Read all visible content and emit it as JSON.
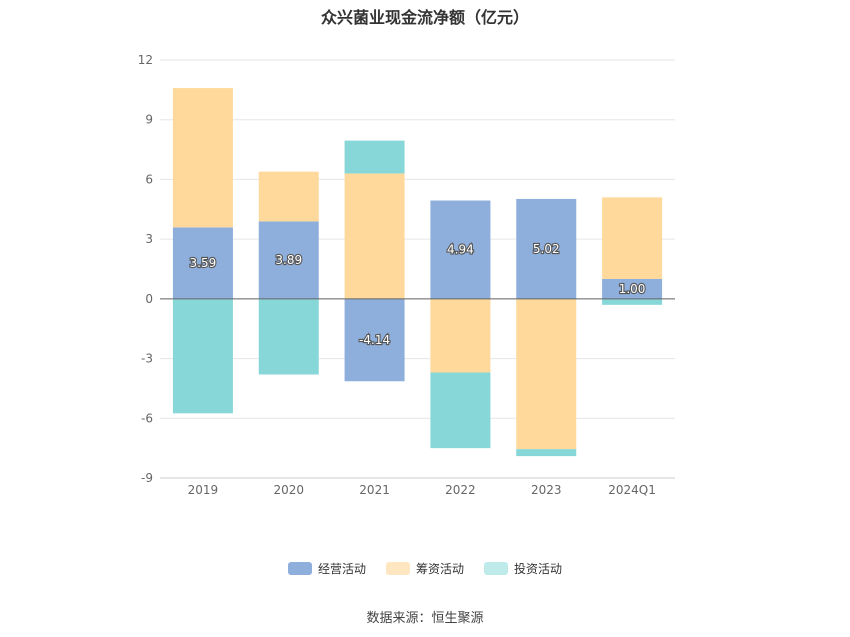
{
  "chart_data": {
    "type": "bar",
    "stacked": true,
    "title": "众兴菌业现金流净额（亿元）",
    "categories": [
      "2019",
      "2020",
      "2021",
      "2022",
      "2023",
      "2024Q1"
    ],
    "series": [
      {
        "name": "经营活动",
        "color": "#8eaedb",
        "values": [
          3.59,
          3.89,
          -4.14,
          4.94,
          5.02,
          1.0
        ],
        "labels": [
          "3.59",
          "3.89",
          "-4.14",
          "4.94",
          "5.02",
          "1.00"
        ]
      },
      {
        "name": "筹资活动",
        "color": "#fed99b",
        "values": [
          7.0,
          2.5,
          6.3,
          -3.7,
          -7.55,
          4.1
        ]
      },
      {
        "name": "投资活动",
        "color": "#87d7d9",
        "values": [
          -5.75,
          -3.8,
          1.65,
          -3.8,
          -0.35,
          -0.3
        ]
      }
    ],
    "y_ticks": [
      "12",
      "9",
      "6",
      "3",
      "0",
      "-3",
      "-6",
      "-9"
    ],
    "ylim": [
      -9,
      12
    ],
    "grid": true,
    "legend_position": "bottom"
  },
  "legend": {
    "items": [
      {
        "label": "经营活动",
        "color": "#8eaedb"
      },
      {
        "label": "筹资活动",
        "color": "#fde6c0"
      },
      {
        "label": "投资活动",
        "color": "#bfeaea"
      }
    ]
  },
  "source": "数据来源：恒生聚源"
}
